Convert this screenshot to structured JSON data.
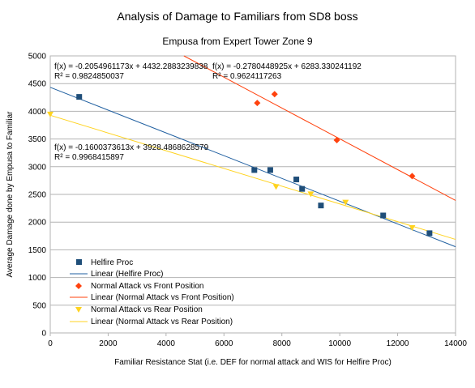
{
  "chart_data": {
    "type": "scatter",
    "title": "Analysis of Damage to Familiars from SD8 boss",
    "subtitle": "Empusa from Expert Tower Zone 9",
    "xlabel": "Familiar Resistance Stat  (i.e. DEF for normal attack and WIS for Helfire Proc)",
    "ylabel": "Average Damage done by Empusa to Familiar",
    "xlim": [
      0,
      14000
    ],
    "ylim": [
      0,
      5000
    ],
    "x_ticks": [
      "0",
      "2000",
      "4000",
      "6000",
      "8000",
      "10000",
      "12000",
      "14000"
    ],
    "y_ticks": [
      "0",
      "500",
      "1000",
      "1500",
      "2000",
      "2500",
      "3000",
      "3500",
      "4000",
      "4500",
      "5000"
    ],
    "grid": "horizontal",
    "legend_position": "bottom-left",
    "series": [
      {
        "name": "Helfire Proc",
        "marker": "square",
        "color": "#1f4e79",
        "points": [
          [
            1000,
            4260
          ],
          [
            7050,
            2940
          ],
          [
            7600,
            2940
          ],
          [
            8500,
            2770
          ],
          [
            8700,
            2600
          ],
          [
            9350,
            2300
          ],
          [
            11500,
            2120
          ],
          [
            13100,
            1800
          ]
        ],
        "trendline": {
          "name": "Linear (Helfire Proc)",
          "slope": -0.2054961173,
          "intercept": 4432.2883239838,
          "color": "#1f5fa0",
          "equation": "f(x) = -0.2054961173x + 4432.2883239838",
          "r2": "R² = 0.9824850037"
        }
      },
      {
        "name": "Normal Attack vs Front Position",
        "marker": "diamond",
        "color": "#ff420e",
        "points": [
          [
            7150,
            4150
          ],
          [
            7750,
            4310
          ],
          [
            9900,
            3480
          ],
          [
            12500,
            2830
          ]
        ],
        "trendline": {
          "name": "Linear (Normal Attack vs Front Position)",
          "slope": -0.2780448925,
          "intercept": 6283.330241192,
          "color": "#ff420e",
          "equation": "f(x) = -0.2780448925x + 6283.330241192",
          "r2": "R² = 0.9624117263"
        }
      },
      {
        "name": "Normal Attack vs Rear Position",
        "marker": "triangle-down",
        "color": "#ffd320",
        "points": [
          [
            0,
            3950
          ],
          [
            7800,
            2640
          ],
          [
            9000,
            2510
          ],
          [
            10200,
            2360
          ],
          [
            12500,
            1900
          ]
        ],
        "trendline": {
          "name": "Linear (Normal Attack vs Rear Position)",
          "slope": -0.1600373613,
          "intercept": 3928.4868628579,
          "color": "#ffd320",
          "equation": "f(x) = -0.1600373613x + 3928.4868628579",
          "r2": "R² = 0.9968415897"
        }
      }
    ]
  }
}
